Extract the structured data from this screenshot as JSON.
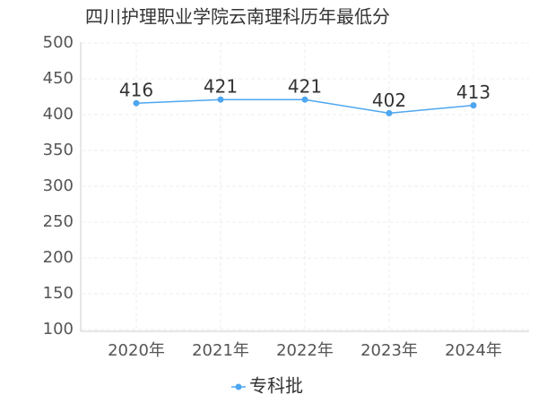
{
  "chart_data": {
    "type": "line",
    "title": "四川护理职业学院云南理科历年最低分",
    "categories": [
      "2020年",
      "2021年",
      "2022年",
      "2023年",
      "2024年"
    ],
    "series": [
      {
        "name": "专科批",
        "color": "#4da6f0",
        "values": [
          416,
          421,
          421,
          402,
          413
        ]
      }
    ],
    "ylim": [
      100,
      500
    ],
    "yticks": [
      100,
      150,
      200,
      250,
      300,
      350,
      400,
      450,
      500
    ],
    "grid": true,
    "legend": "bottom"
  }
}
